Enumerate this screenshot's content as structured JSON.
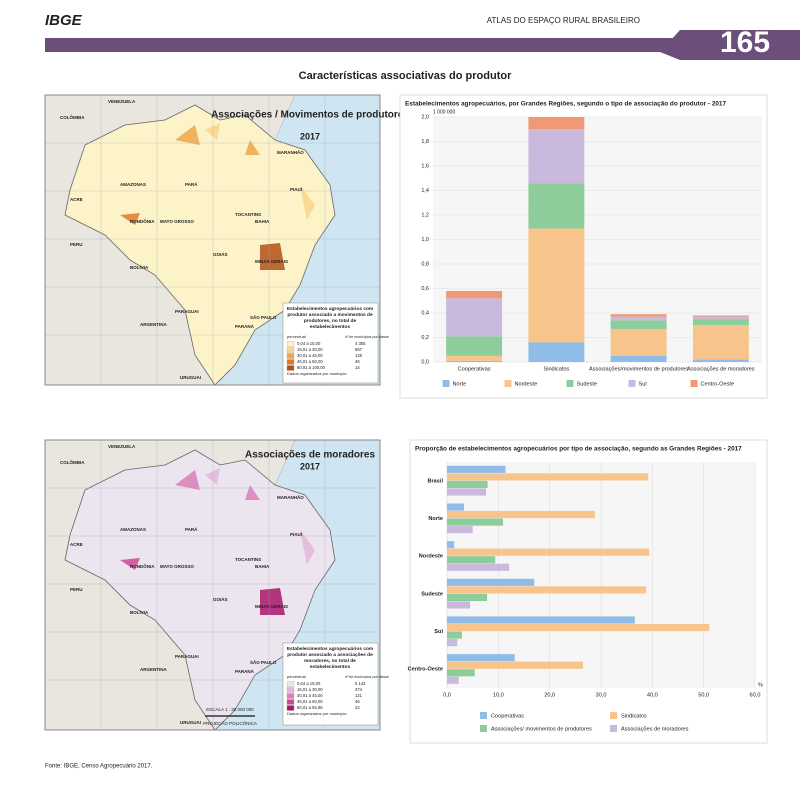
{
  "header": {
    "logo": "IBGE",
    "atlas": "ATLAS DO ESPAÇO RURAL BRASILEIRO",
    "page": "165"
  },
  "title": "Características associativas do produtor",
  "source": "Fonte: IBGE, Censo Agropecuário 2017.",
  "map_labels": [
    "AMAZONAS",
    "PARÁ",
    "MATO GROSSO",
    "BAHIA",
    "MINAS GERAIS",
    "GOIÁS",
    "PIAUÍ",
    "TOCANTINS",
    "MARANHÃO",
    "BOLÍVIA",
    "PERU",
    "ARGENTINA",
    "PARAGUAI",
    "URUGUAI",
    "VENEZUELA",
    "COLÔMBIA",
    "ACRE",
    "RONDÔNIA",
    "SÃO PAULO",
    "PARANÁ"
  ],
  "maps": [
    {
      "title": "Associações / Movimentos de produtores",
      "year": "2017",
      "land_color": "#fdf3c8",
      "legend_title": "Estabelecimentos agropecuários com produtor associado a movimentos de produtores, no total de estabelecimentos",
      "col1": "percentual",
      "col2": "nº de municípios por classe",
      "classes": [
        "0,04 a 15,00",
        "15,01 a 30,00",
        "30,01 a 45,00",
        "45,01 a 60,00",
        "60,01 a 100,00"
      ],
      "counts": [
        "4 355",
        "557",
        "129",
        "46",
        "14"
      ],
      "class_colors": [
        "#fdf3c8",
        "#f9d48a",
        "#f0a64a",
        "#e07a22",
        "#b3501a"
      ],
      "note": "Dados organizados por município"
    },
    {
      "title": "Associações de moradores",
      "year": "2017",
      "land_color": "#ece4ef",
      "legend_title": "Estabelecimentos agropecuários com produtor associado a associações de moradores, no total de estabelecimentos",
      "col1": "percentual",
      "col2": "nº de municípios por classe",
      "classes": [
        "0,04 a 15,00",
        "15,01 a 30,00",
        "30,01 a 45,00",
        "45,01 a 60,00",
        "60,01 a 92,86"
      ],
      "counts": [
        "5 142",
        "374",
        "121",
        "46",
        "22"
      ],
      "class_colors": [
        "#ece4ef",
        "#e3b8d8",
        "#db7fb8",
        "#d04796",
        "#a8166a"
      ],
      "note": "Dados organizados por município",
      "scale": "ESCALA 1 : 30 000 000",
      "projection": "PROJEÇÃO POLICÔNICA"
    }
  ],
  "chart_data": [
    {
      "type": "bar",
      "stacked": true,
      "title": "Estabelecimentos agropecuários, por Grandes Regiões, segundo o tipo de associação do produtor - 2017",
      "y_unit": "1 000 000",
      "categories": [
        "Cooperativas",
        "Sindicatos",
        "Associações/movimentos de produtores",
        "Associações de moradores"
      ],
      "series": [
        {
          "name": "Norte",
          "color": "#8fbde8",
          "values": [
            0.01,
            0.16,
            0.05,
            0.02
          ]
        },
        {
          "name": "Nordeste",
          "color": "#f7c58c",
          "values": [
            0.04,
            0.93,
            0.22,
            0.28
          ]
        },
        {
          "name": "Sudeste",
          "color": "#8dcc9b",
          "values": [
            0.16,
            0.37,
            0.07,
            0.05
          ]
        },
        {
          "name": "Sul",
          "color": "#c9b9dc",
          "values": [
            0.31,
            0.44,
            0.03,
            0.02
          ]
        },
        {
          "name": "Centro-Oeste",
          "color": "#ef9a74",
          "values": [
            0.06,
            0.1,
            0.02,
            0.01
          ]
        }
      ],
      "ylim": [
        0,
        2.0
      ],
      "yticks": [
        {
          "value": 0,
          "label": "0,0"
        },
        {
          "value": 0.2,
          "label": "0,2"
        },
        {
          "value": 0.4,
          "label": "0,4"
        },
        {
          "value": 0.6,
          "label": "0,6"
        },
        {
          "value": 0.8,
          "label": "0,8"
        },
        {
          "value": 1.0,
          "label": "1,0"
        },
        {
          "value": 1.2,
          "label": "1,2"
        },
        {
          "value": 1.4,
          "label": "1,4"
        },
        {
          "value": 1.6,
          "label": "1,6"
        },
        {
          "value": 1.8,
          "label": "1,8"
        },
        {
          "value": 2.0,
          "label": "2,0"
        }
      ],
      "grid": true
    },
    {
      "type": "hbar",
      "title": "Proporção de estabelecimentos agropecuários por tipo de associação, segundo as Grandes Regiões - 2017",
      "x_unit": "%",
      "categories": [
        "Brasil",
        "Norte",
        "Nordeste",
        "Sudeste",
        "Sul",
        "Centro-Oeste"
      ],
      "series": [
        {
          "name": "Cooperativas",
          "color": "#8fbde8",
          "values": [
            11.4,
            3.3,
            1.4,
            17.0,
            36.6,
            13.2
          ]
        },
        {
          "name": "Sindicatos",
          "color": "#f7c58c",
          "values": [
            39.2,
            28.8,
            39.4,
            38.8,
            51.1,
            26.5
          ]
        },
        {
          "name": "Associações/ movimentos de produtores",
          "color": "#8dcc9b",
          "values": [
            7.9,
            10.9,
            9.4,
            7.8,
            2.9,
            5.4
          ]
        },
        {
          "name": "Associações de moradores",
          "color": "#c9b9dc",
          "values": [
            7.6,
            5.0,
            12.1,
            4.5,
            2.0,
            2.3
          ]
        }
      ],
      "xlim": [
        0,
        60
      ],
      "xticks": [
        {
          "value": 0,
          "label": "0,0"
        },
        {
          "value": 10,
          "label": "10,0"
        },
        {
          "value": 20,
          "label": "20,0"
        },
        {
          "value": 30,
          "label": "30,0"
        },
        {
          "value": 40,
          "label": "40,0"
        },
        {
          "value": 50,
          "label": "50,0"
        },
        {
          "value": 60,
          "label": "60,0"
        }
      ],
      "grid": true
    }
  ]
}
